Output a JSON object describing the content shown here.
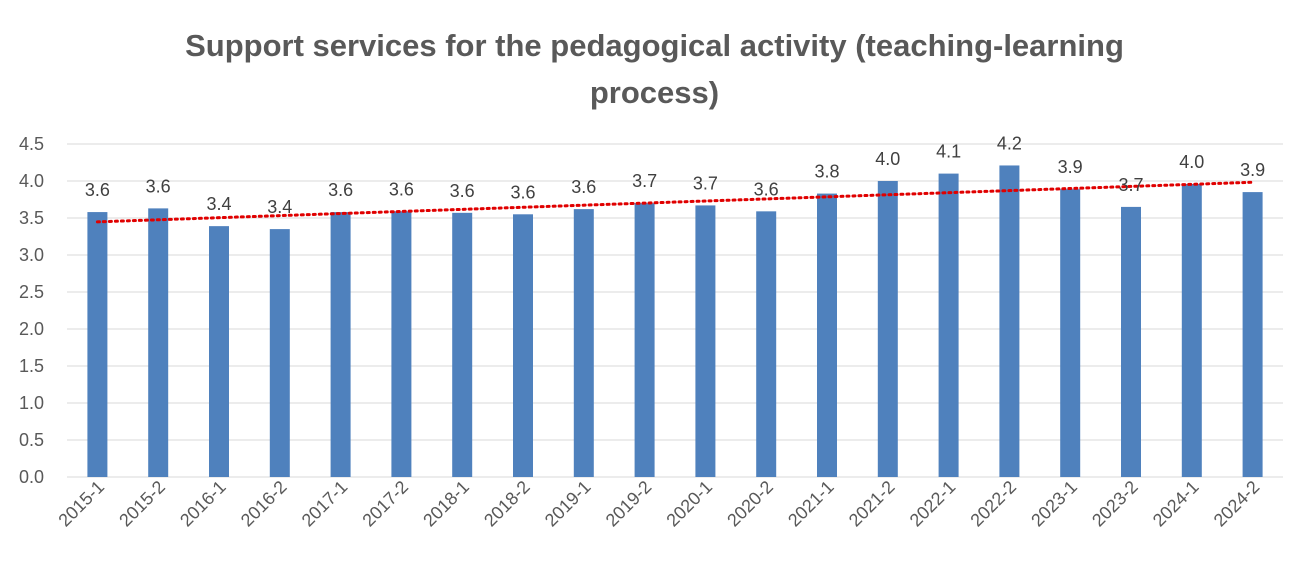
{
  "chart_data": {
    "type": "bar",
    "title": "Support services for the pedagogical activity (teaching-learning process)",
    "xlabel": "",
    "ylabel": "",
    "categories": [
      "2015-1",
      "2015-2",
      "2016-1",
      "2016-2",
      "2017-1",
      "2017-2",
      "2018-1",
      "2018-2",
      "2019-1",
      "2019-2",
      "2020-1",
      "2020-2",
      "2021-1",
      "2021-2",
      "2022-1",
      "2022-2",
      "2023-1",
      "2023-2",
      "2024-1",
      "2024-2"
    ],
    "values": [
      3.58,
      3.63,
      3.39,
      3.35,
      3.58,
      3.59,
      3.57,
      3.55,
      3.62,
      3.7,
      3.67,
      3.59,
      3.83,
      4.0,
      4.1,
      4.21,
      3.89,
      3.65,
      3.96,
      3.85
    ],
    "data_labels": [
      "3.6",
      "3.6",
      "3.4",
      "3.4",
      "3.6",
      "3.6",
      "3.6",
      "3.6",
      "3.6",
      "3.7",
      "3.7",
      "3.6",
      "3.8",
      "4.0",
      "4.1",
      "4.2",
      "3.9",
      "3.7",
      "4.0",
      "3.9"
    ],
    "ylim": [
      0,
      4.5
    ],
    "y_ticks": [
      "0.0",
      "0.5",
      "1.0",
      "1.5",
      "2.0",
      "2.5",
      "3.0",
      "3.5",
      "4.0",
      "4.5"
    ],
    "grid": true,
    "trendline": {
      "type": "linear",
      "style": "dotted"
    },
    "colors": {
      "bar": "#4F81BD",
      "trendline": "#E00000",
      "grid": "#D9D9D9",
      "text": "#595959"
    }
  }
}
